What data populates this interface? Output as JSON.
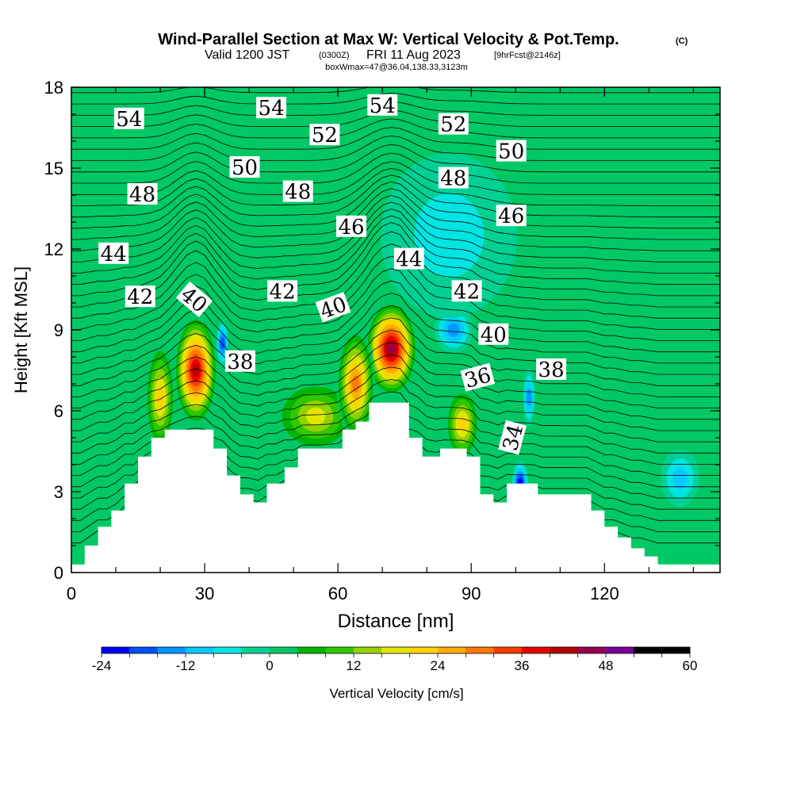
{
  "header": {
    "title_main": "Wind-Parallel Section at Max W: Vertical Velocity & Pot.Temp.",
    "copyright": "(C)",
    "valid_prefix": "Valid 1200 JST",
    "valid_zulu": "(0300Z)",
    "valid_date": "FRI 11 Aug 2023",
    "forecast": "[9hrFcst@2146z]",
    "box_info": "boxWmax=47@36.04,138.33,3123m"
  },
  "colors": {
    "scale": [
      "#0000ff",
      "#0050ff",
      "#0096ff",
      "#00c8ff",
      "#00e6e6",
      "#00d296",
      "#00c864",
      "#00b400",
      "#32c800",
      "#96d200",
      "#e6e600",
      "#ffd200",
      "#ffaa00",
      "#ff7800",
      "#ff3c00",
      "#e60000",
      "#b40000",
      "#960050",
      "#780096"
    ],
    "terrain": "#ffffff",
    "contour": "#000000"
  },
  "chart_data": {
    "type": "heatmap",
    "xlabel": "Distance [nm]",
    "ylabel": "Height [Kft MSL]",
    "xlim": [
      0,
      146
    ],
    "ylim": [
      0,
      18
    ],
    "xticks": [
      0,
      30,
      60,
      90,
      120
    ],
    "xtick_labels": [
      "0",
      "30",
      "60",
      "90",
      "120"
    ],
    "yticks": [
      0,
      3,
      6,
      9,
      12,
      15,
      18
    ],
    "ytick_labels": [
      "0",
      "3",
      "6",
      "9",
      "12",
      "15",
      "18"
    ],
    "colorbar": {
      "label": "Vertical Velocity [cm/s]",
      "min": -24,
      "max": 60,
      "step": 4,
      "ticks": [
        -24,
        -12,
        0,
        12,
        24,
        36,
        48,
        60
      ],
      "tick_labels": [
        "-24",
        "-12",
        "0",
        "12",
        "24",
        "36",
        "48",
        "60"
      ]
    },
    "terrain_profile": [
      [
        0,
        0.3
      ],
      [
        3,
        0.3
      ],
      [
        3,
        1.0
      ],
      [
        6,
        1.0
      ],
      [
        6,
        1.7
      ],
      [
        9,
        1.7
      ],
      [
        9,
        2.3
      ],
      [
        12,
        2.3
      ],
      [
        12,
        3.3
      ],
      [
        15,
        3.3
      ],
      [
        15,
        4.3
      ],
      [
        18,
        4.3
      ],
      [
        18,
        5.0
      ],
      [
        21,
        5.0
      ],
      [
        21,
        5.3
      ],
      [
        32,
        5.3
      ],
      [
        32,
        4.6
      ],
      [
        35,
        4.6
      ],
      [
        35,
        3.6
      ],
      [
        38,
        3.6
      ],
      [
        38,
        2.9
      ],
      [
        41,
        2.9
      ],
      [
        41,
        2.6
      ],
      [
        44,
        2.6
      ],
      [
        44,
        3.3
      ],
      [
        48,
        3.3
      ],
      [
        48,
        3.9
      ],
      [
        51,
        3.9
      ],
      [
        51,
        4.6
      ],
      [
        61,
        4.6
      ],
      [
        61,
        5.3
      ],
      [
        64,
        5.3
      ],
      [
        64,
        5.6
      ],
      [
        67,
        5.6
      ],
      [
        67,
        6.3
      ],
      [
        76,
        6.3
      ],
      [
        76,
        5.0
      ],
      [
        79,
        5.0
      ],
      [
        79,
        4.3
      ],
      [
        83,
        4.3
      ],
      [
        83,
        4.6
      ],
      [
        89,
        4.6
      ],
      [
        89,
        4.3
      ],
      [
        92,
        4.3
      ],
      [
        92,
        2.9
      ],
      [
        95,
        2.9
      ],
      [
        95,
        2.6
      ],
      [
        98,
        2.6
      ],
      [
        98,
        3.3
      ],
      [
        105,
        3.3
      ],
      [
        105,
        2.9
      ],
      [
        117,
        2.9
      ],
      [
        117,
        2.3
      ],
      [
        120,
        2.3
      ],
      [
        120,
        1.7
      ],
      [
        123,
        1.7
      ],
      [
        123,
        1.3
      ],
      [
        126,
        1.3
      ],
      [
        126,
        0.9
      ],
      [
        129,
        0.9
      ],
      [
        129,
        0.6
      ],
      [
        132,
        0.6
      ],
      [
        132,
        0.3
      ],
      [
        146,
        0.3
      ]
    ],
    "velocity_cells": [
      {
        "x": 28,
        "y": 7.5,
        "value": 44,
        "rx": 4.5,
        "ry": 2.0
      },
      {
        "x": 72,
        "y": 8.3,
        "value": 47,
        "rx": 5.5,
        "ry": 1.7
      },
      {
        "x": 55,
        "y": 5.8,
        "value": 20,
        "rx": 9.0,
        "ry": 1.3
      },
      {
        "x": 88,
        "y": 5.5,
        "value": 22,
        "rx": 3.5,
        "ry": 1.3
      },
      {
        "x": 20,
        "y": 6.5,
        "value": 24,
        "rx": 3.0,
        "ry": 2.0
      },
      {
        "x": 64,
        "y": 7.0,
        "value": 30,
        "rx": 4.0,
        "ry": 2.0
      },
      {
        "x": 34,
        "y": 8.5,
        "value": -20,
        "rx": 1.0,
        "ry": 0.8
      },
      {
        "x": 86,
        "y": 9.0,
        "value": -16,
        "rx": 4.0,
        "ry": 0.8
      },
      {
        "x": 101,
        "y": 3.3,
        "value": -24,
        "rx": 1.5,
        "ry": 0.8
      },
      {
        "x": 103,
        "y": 6.5,
        "value": -14,
        "rx": 1.0,
        "ry": 1.0
      },
      {
        "x": 137,
        "y": 3.5,
        "value": -12,
        "rx": 4.0,
        "ry": 1.0
      },
      {
        "x": 85,
        "y": 12.5,
        "value": -8,
        "rx": 15.0,
        "ry": 3.0
      }
    ],
    "contour_labels": [
      {
        "x": 13,
        "y": 16.8,
        "text": "54"
      },
      {
        "x": 45,
        "y": 17.2,
        "text": "54"
      },
      {
        "x": 70,
        "y": 17.3,
        "text": "54"
      },
      {
        "x": 57,
        "y": 16.2,
        "text": "52"
      },
      {
        "x": 86,
        "y": 16.6,
        "text": "52"
      },
      {
        "x": 39,
        "y": 15.0,
        "text": "50"
      },
      {
        "x": 99,
        "y": 15.6,
        "text": "50"
      },
      {
        "x": 16,
        "y": 14.0,
        "text": "48"
      },
      {
        "x": 51,
        "y": 14.1,
        "text": "48"
      },
      {
        "x": 86,
        "y": 14.6,
        "text": "48"
      },
      {
        "x": 63,
        "y": 12.8,
        "text": "46"
      },
      {
        "x": 99,
        "y": 13.2,
        "text": "46"
      },
      {
        "x": 9.5,
        "y": 11.8,
        "text": "44"
      },
      {
        "x": 76,
        "y": 11.6,
        "text": "44"
      },
      {
        "x": 15.5,
        "y": 10.2,
        "text": "42"
      },
      {
        "x": 47.5,
        "y": 10.4,
        "text": "42"
      },
      {
        "x": 89,
        "y": 10.4,
        "text": "42"
      },
      {
        "x": 27.5,
        "y": 10.1,
        "text": "40",
        "angle": 40
      },
      {
        "x": 59,
        "y": 9.8,
        "text": "40",
        "angle": -20
      },
      {
        "x": 95,
        "y": 8.8,
        "text": "40"
      },
      {
        "x": 38,
        "y": 7.8,
        "text": "38"
      },
      {
        "x": 108,
        "y": 7.5,
        "text": "38"
      },
      {
        "x": 91.5,
        "y": 7.2,
        "text": "36",
        "angle": -15
      },
      {
        "x": 99.5,
        "y": 5.0,
        "text": "34",
        "angle": -75
      }
    ]
  }
}
